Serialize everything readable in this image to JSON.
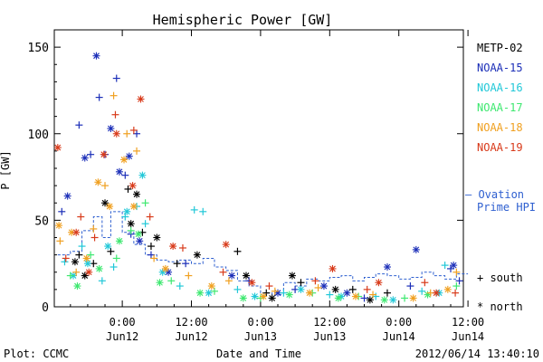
{
  "chart_data": {
    "type": "scatter",
    "title": "Hemispheric Power [GW]",
    "ylabel": "P [GW]",
    "xlabel": "Date and Time",
    "ylim": [
      0,
      160
    ],
    "xlim_hours": [
      -11.8,
      59.2
    ],
    "y_ticks": [
      0,
      50,
      100,
      150
    ],
    "x_ticks": [
      {
        "hour": 0,
        "time": "0:00",
        "date": "Jun12"
      },
      {
        "hour": 12,
        "time": "12:00",
        "date": "Jun12"
      },
      {
        "hour": 24,
        "time": "0:00",
        "date": "Jun13"
      },
      {
        "hour": 36,
        "time": "12:00",
        "date": "Jun13"
      },
      {
        "hour": 48,
        "time": "0:00",
        "date": "Jun14"
      },
      {
        "hour": 60,
        "time": "12:00",
        "date": "Jun14"
      }
    ],
    "legend": {
      "placement": "right",
      "satellites": [
        "METP-02",
        "NOAA-15",
        "NOAA-16",
        "NOAA-17",
        "NOAA-18",
        "NOAA-19"
      ],
      "model_label_line1": "— Ovation",
      "model_label_line2": "Prime HPI",
      "south_label": "+ south",
      "north_label": "* north"
    },
    "colors": {
      "METP-02": "#000000",
      "NOAA-15": "#1c2fb8",
      "NOAA-16": "#22c8d8",
      "NOAA-17": "#3ee870",
      "NOAA-18": "#f0a020",
      "NOAA-19": "#d83a1a",
      "ovation": "#2f60d0"
    },
    "series": [
      {
        "name": "METP-02",
        "south": [
          [
            -7.5,
            30
          ],
          [
            -5.0,
            25
          ],
          [
            -2.0,
            32
          ],
          [
            1.0,
            68
          ],
          [
            3.5,
            43
          ],
          [
            5.0,
            35
          ],
          [
            9.5,
            25
          ],
          [
            20.0,
            32
          ],
          [
            25.0,
            8
          ],
          [
            31.0,
            14
          ],
          [
            40.0,
            10
          ],
          [
            46.0,
            8
          ]
        ],
        "north": [
          [
            -8.2,
            26
          ],
          [
            -6.5,
            18
          ],
          [
            -3.0,
            60
          ],
          [
            1.5,
            48
          ],
          [
            2.5,
            65
          ],
          [
            6.0,
            40
          ],
          [
            13.0,
            30
          ],
          [
            21.5,
            18
          ],
          [
            26.0,
            5
          ],
          [
            29.5,
            18
          ],
          [
            37.0,
            10
          ],
          [
            43.0,
            4
          ]
        ]
      },
      {
        "name": "NOAA-15",
        "south": [
          [
            -10.5,
            55
          ],
          [
            -7.5,
            105
          ],
          [
            -5.5,
            88
          ],
          [
            -4.0,
            121
          ],
          [
            -3.0,
            88
          ],
          [
            -1.0,
            132
          ],
          [
            0.5,
            76
          ],
          [
            1.5,
            42
          ],
          [
            2.5,
            100
          ],
          [
            5.0,
            30
          ],
          [
            11.0,
            25
          ],
          [
            22.0,
            15
          ],
          [
            30.0,
            10
          ],
          [
            42.0,
            5
          ],
          [
            50.0,
            12
          ],
          [
            57.0,
            22
          ],
          [
            58.5,
            15
          ]
        ],
        "north": [
          [
            -9.5,
            64
          ],
          [
            -6.5,
            86
          ],
          [
            -4.5,
            145
          ],
          [
            -2.0,
            103
          ],
          [
            -0.5,
            78
          ],
          [
            1.2,
            87
          ],
          [
            3.0,
            38
          ],
          [
            8.0,
            20
          ],
          [
            19.0,
            18
          ],
          [
            27.0,
            8
          ],
          [
            35.0,
            12
          ],
          [
            51.0,
            33
          ],
          [
            46.0,
            23
          ],
          [
            57.5,
            24
          ],
          [
            39.0,
            8
          ]
        ]
      },
      {
        "name": "NOAA-16",
        "south": [
          [
            -10.0,
            26
          ],
          [
            -7.0,
            35
          ],
          [
            -3.5,
            15
          ],
          [
            -1.5,
            23
          ],
          [
            0.5,
            52
          ],
          [
            2.5,
            58
          ],
          [
            4.0,
            48
          ],
          [
            10.0,
            12
          ],
          [
            12.5,
            56
          ],
          [
            14.0,
            55
          ],
          [
            20.0,
            10
          ],
          [
            28.0,
            8
          ],
          [
            36.0,
            7
          ],
          [
            44.0,
            6
          ],
          [
            52.0,
            9
          ],
          [
            56.0,
            24
          ]
        ],
        "north": [
          [
            -8.5,
            18
          ],
          [
            -6.0,
            25
          ],
          [
            -2.5,
            35
          ],
          [
            0.8,
            55
          ],
          [
            3.5,
            76
          ],
          [
            7.0,
            20
          ],
          [
            15.0,
            8
          ],
          [
            23.0,
            6
          ],
          [
            31.0,
            10
          ],
          [
            38.0,
            6
          ],
          [
            47.0,
            4
          ],
          [
            55.0,
            8
          ]
        ]
      },
      {
        "name": "NOAA-17",
        "south": [
          [
            -9.0,
            18
          ],
          [
            -5.5,
            30
          ],
          [
            -1.0,
            28
          ],
          [
            1.5,
            44
          ],
          [
            4.0,
            60
          ],
          [
            8.5,
            15
          ],
          [
            16.0,
            9
          ],
          [
            24.0,
            5
          ],
          [
            33.0,
            8
          ],
          [
            41.0,
            6
          ],
          [
            49.0,
            5
          ],
          [
            58.0,
            12
          ]
        ],
        "north": [
          [
            -7.8,
            12
          ],
          [
            -4.0,
            22
          ],
          [
            -0.5,
            38
          ],
          [
            2.8,
            42
          ],
          [
            6.5,
            14
          ],
          [
            13.5,
            8
          ],
          [
            21.0,
            5
          ],
          [
            29.0,
            7
          ],
          [
            37.5,
            5
          ],
          [
            45.5,
            4
          ],
          [
            53.0,
            7
          ]
        ]
      },
      {
        "name": "NOAA-18",
        "south": [
          [
            -10.8,
            38
          ],
          [
            -8.0,
            20
          ],
          [
            -5.0,
            45
          ],
          [
            -3.0,
            70
          ],
          [
            -1.5,
            122
          ],
          [
            0.8,
            100
          ],
          [
            2.5,
            90
          ],
          [
            5.5,
            28
          ],
          [
            11.5,
            18
          ],
          [
            18.5,
            15
          ],
          [
            26.5,
            9
          ],
          [
            34.0,
            11
          ],
          [
            43.5,
            7
          ],
          [
            53.5,
            8
          ],
          [
            58.0,
            20
          ]
        ],
        "north": [
          [
            -11.0,
            47
          ],
          [
            -8.8,
            43
          ],
          [
            -6.2,
            28
          ],
          [
            -4.2,
            72
          ],
          [
            -2.2,
            58
          ],
          [
            0.3,
            85
          ],
          [
            2.0,
            58
          ],
          [
            7.5,
            22
          ],
          [
            15.5,
            12
          ],
          [
            24.5,
            6
          ],
          [
            32.5,
            8
          ],
          [
            40.5,
            6
          ],
          [
            50.5,
            5
          ],
          [
            56.5,
            10
          ]
        ]
      },
      {
        "name": "NOAA-19",
        "south": [
          [
            -9.8,
            28
          ],
          [
            -7.2,
            52
          ],
          [
            -4.8,
            40
          ],
          [
            -1.2,
            111
          ],
          [
            2.0,
            102
          ],
          [
            4.8,
            52
          ],
          [
            10.5,
            34
          ],
          [
            17.5,
            20
          ],
          [
            25.5,
            12
          ],
          [
            33.5,
            15
          ],
          [
            42.5,
            10
          ],
          [
            52.5,
            14
          ],
          [
            57.8,
            8
          ]
        ],
        "north": [
          [
            -11.2,
            92
          ],
          [
            -8.0,
            43
          ],
          [
            -5.8,
            20
          ],
          [
            -3.2,
            88
          ],
          [
            -1.0,
            100
          ],
          [
            1.8,
            70
          ],
          [
            3.2,
            120
          ],
          [
            8.8,
            35
          ],
          [
            18.0,
            36
          ],
          [
            22.5,
            14
          ],
          [
            36.5,
            22
          ],
          [
            44.5,
            14
          ],
          [
            54.5,
            8
          ]
        ]
      }
    ],
    "ovation": [
      {
        "hour": -11.2,
        "value": 30
      },
      {
        "hour": -9.0,
        "value": 32
      },
      {
        "hour": -7.0,
        "value": 44
      },
      {
        "hour": -5.0,
        "value": 52
      },
      {
        "hour": -3.5,
        "value": 40
      },
      {
        "hour": -2.0,
        "value": 55
      },
      {
        "hour": 0.0,
        "value": 43
      },
      {
        "hour": 2.0,
        "value": 36
      },
      {
        "hour": 4.0,
        "value": 30
      },
      {
        "hour": 6.0,
        "value": 27
      },
      {
        "hour": 8.0,
        "value": 26
      },
      {
        "hour": 10.0,
        "value": 27
      },
      {
        "hour": 12.0,
        "value": 25
      },
      {
        "hour": 14.0,
        "value": 28
      },
      {
        "hour": 16.0,
        "value": 23
      },
      {
        "hour": 18.0,
        "value": 21
      },
      {
        "hour": 20.0,
        "value": 15
      },
      {
        "hour": 22.0,
        "value": 12
      },
      {
        "hour": 24.0,
        "value": 8
      },
      {
        "hour": 26.0,
        "value": 7
      },
      {
        "hour": 28.0,
        "value": 14
      },
      {
        "hour": 30.0,
        "value": 12
      },
      {
        "hour": 32.0,
        "value": 16
      },
      {
        "hour": 34.0,
        "value": 15
      },
      {
        "hour": 36.0,
        "value": 17
      },
      {
        "hour": 38.0,
        "value": 18
      },
      {
        "hour": 40.0,
        "value": 15
      },
      {
        "hour": 42.0,
        "value": 17
      },
      {
        "hour": 44.0,
        "value": 19
      },
      {
        "hour": 46.0,
        "value": 18
      },
      {
        "hour": 48.0,
        "value": 16
      },
      {
        "hour": 50.0,
        "value": 17
      },
      {
        "hour": 52.0,
        "value": 20
      },
      {
        "hour": 54.0,
        "value": 18
      },
      {
        "hour": 56.0,
        "value": 16
      },
      {
        "hour": 58.0,
        "value": 19
      }
    ]
  },
  "footer": {
    "left": "Plot: CCMC",
    "center": "Date and Time",
    "right": "2012/06/14 13:40:10"
  }
}
